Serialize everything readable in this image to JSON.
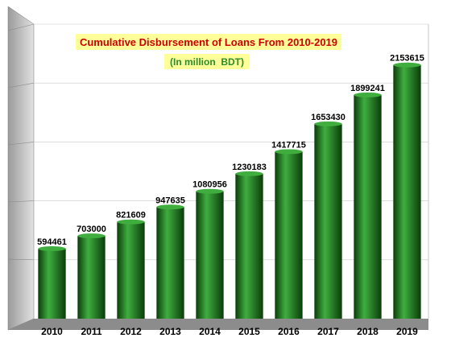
{
  "chart_data": {
    "type": "bar",
    "title": "Cumulative Disbursement of Loans From 2010-2019",
    "subtitle": "(In million  BDT)",
    "categories": [
      "2010",
      "2011",
      "2012",
      "2013",
      "2014",
      "2015",
      "2016",
      "2017",
      "2018",
      "2019"
    ],
    "values": [
      594461,
      703000,
      821609,
      947635,
      1080956,
      1230183,
      1417715,
      1653430,
      1899241,
      2153615
    ],
    "data_labels": [
      "594461",
      "703000",
      "821609",
      "947635",
      "1080956",
      "1230183",
      "1417715",
      "1653430",
      "1899241",
      "2153615"
    ],
    "ylim": [
      0,
      2500000
    ],
    "grid": true,
    "legend": "none",
    "xlabel": "",
    "ylabel": "",
    "colors": {
      "bar": "#1f7a1f",
      "bar_dark": "#0a3d0a",
      "bar_light": "#3fae3f",
      "wall": "#d8d8d8",
      "floor": "#8c8c8c",
      "title_text": "#cc0000",
      "subtitle_text": "#2e8b2e",
      "title_box": "#ffff99"
    }
  }
}
